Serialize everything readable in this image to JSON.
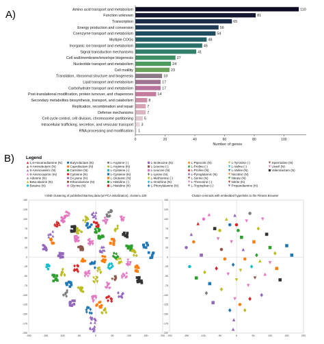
{
  "figure": {
    "panel_a_letter": "A)",
    "panel_b_letter": "B)",
    "legend_title": "Legend",
    "scatter_left_title": "t-SNE clustering of published BarSeq data (w/ PCA initialization), clusters=100",
    "scatter_right_title": "Cluster centroids with embedded hyperlinks to the Fitness Browser"
  },
  "chart_data": [
    {
      "type": "bar",
      "orientation": "horizontal",
      "categories": [
        "Amino acid transport and metabolism",
        "Function unknown",
        "Transcription",
        "Energy production and conversion",
        "Coenzyme transport and metabolism",
        "Multiple COGs",
        "Inorganic ion transport and metabolism",
        "Signal transduction mechanisms",
        "Cell wall/membrane/envelope biogenesis",
        "Nucleotide transport and metabolism",
        "Cell motility",
        "Translation, ribosomal structure and biogenesis",
        "Lipid transport and metabolism",
        "Carbohydrate transport and metabolism",
        "Post-translational modification, protein turnover, and chaperones",
        "Secondary metabolites biosynthesis, transport, and catabolism",
        "Replication, recombination and repair",
        "Defense mechanisms",
        "Cell cycle control, cell division, chromosome partitioning",
        "Intracellular trafficking, secretion, and vesicular transport",
        "RNA processing and modification"
      ],
      "values": [
        110,
        81,
        65,
        56,
        54,
        48,
        45,
        41,
        27,
        24,
        23,
        18,
        17,
        17,
        14,
        8,
        7,
        7,
        5,
        3,
        1
      ],
      "value_labels": [
        "110",
        "81",
        "65",
        "56",
        "54",
        "48",
        "45",
        "41",
        "27",
        "24",
        "23",
        "18",
        "17",
        "17",
        "14",
        "8",
        "7",
        "7",
        "5",
        "3",
        "1"
      ],
      "xlabel": "Number of genes",
      "xlim": [
        0,
        115
      ],
      "xticks": [
        0,
        20,
        40,
        60,
        80,
        100
      ],
      "xtick_labels": [
        "0",
        "20",
        "40",
        "60",
        "80",
        "100"
      ],
      "colors": [
        "#0d0a24",
        "#15162f",
        "#1b2a46",
        "#1e3b55",
        "#1f4c5e",
        "#225f66",
        "#27716a",
        "#2f806a",
        "#3e8e66",
        "#4f9a5f",
        "#6aa257",
        "#8a7a86",
        "#a07592",
        "#b6749c",
        "#c47c9e",
        "#cd8fa7",
        "#d3a3b4",
        "#d9b6c2",
        "#dfc6cf",
        "#e7d7dd",
        "#efe6ea"
      ]
    },
    {
      "type": "scatter",
      "title": "t-SNE clustering of published BarSeq data (w/ PCA initialization), clusters=100",
      "xlim": [
        -200,
        200
      ],
      "ylim": [
        -200,
        150
      ],
      "xticks": [
        "-200",
        "-150",
        "-100",
        "-50",
        "0",
        "50",
        "100",
        "150",
        "200"
      ],
      "yticks": [
        "150",
        "125",
        "100",
        "75",
        "50",
        "25",
        "0",
        "-25",
        "-50",
        "-75",
        "-100",
        "-125",
        "-150",
        "-175",
        "-200"
      ],
      "legend": [
        {
          "label": "1,6-Hexanediamine (N)",
          "color": "#d62728",
          "marker": "triangle"
        },
        {
          "label": "4-Aminobutyric (N)",
          "color": "#8c564b",
          "marker": "triangle"
        },
        {
          "label": "5-Aminovaleric (N)",
          "color": "#9467bd",
          "marker": "triangle"
        },
        {
          "label": "6-Aminocaproic (N)",
          "color": "#e377c2",
          "marker": "triangle"
        },
        {
          "label": "Adenine (N)",
          "color": "#7f7f7f",
          "marker": "triangle"
        },
        {
          "label": "Beta-alanine (N)",
          "color": "#bcbd22",
          "marker": "triangle"
        },
        {
          "label": "Betaine (N)",
          "color": "#17becf",
          "marker": "circle"
        },
        {
          "label": "Butyrolactam (N)",
          "color": "#1f77b4",
          "marker": "circle"
        },
        {
          "label": "Caprolactam (N)",
          "color": "#ff7f0e",
          "marker": "circle"
        },
        {
          "label": "Carnitine (N)",
          "color": "#2ca02c",
          "marker": "circle"
        },
        {
          "label": "Cytosine (N)",
          "color": "#d62728",
          "marker": "circle"
        },
        {
          "label": "D-Lysine (N)",
          "color": "#9467bd",
          "marker": "circle"
        },
        {
          "label": "Ethanolamine (N)",
          "color": "#8c564b",
          "marker": "circle"
        },
        {
          "label": "Glycine (N)",
          "color": "#e377c2",
          "marker": "circle"
        },
        {
          "label": "L-Arginine (-)",
          "color": "#7f7f7f",
          "marker": "circle"
        },
        {
          "label": "L-Arginine (N)",
          "color": "#bcbd22",
          "marker": "circle"
        },
        {
          "label": "L-Cysteine (-)",
          "color": "#17becf",
          "marker": "square"
        },
        {
          "label": "L-Cysteine (N)",
          "color": "#1f77b4",
          "marker": "square"
        },
        {
          "label": "L-Glutamic (N)",
          "color": "#ff7f0e",
          "marker": "square"
        },
        {
          "label": "L-Histidine (-)",
          "color": "#2ca02c",
          "marker": "square"
        },
        {
          "label": "L-Histidine (N)",
          "color": "#d62728",
          "marker": "square"
        },
        {
          "label": "L-Isoleucine (N)",
          "color": "#9467bd",
          "marker": "square"
        },
        {
          "label": "L-Leucine (-)",
          "color": "#8c564b",
          "marker": "square"
        },
        {
          "label": "L-Leucine (N)",
          "color": "#e377c2",
          "marker": "square"
        },
        {
          "label": "L-Lysine (N)",
          "color": "#7f7f7f",
          "marker": "diamond"
        },
        {
          "label": "L-Methionine (-)",
          "color": "#bcbd22",
          "marker": "diamond"
        },
        {
          "label": "L-Ornithine (N)",
          "color": "#17becf",
          "marker": "diamond"
        },
        {
          "label": "L-Phenylalanine (N)",
          "color": "#1f77b4",
          "marker": "diamond"
        },
        {
          "label": "L-Pipecolic (N)",
          "color": "#ff7f0e",
          "marker": "diamond"
        },
        {
          "label": "L-Proline (-)",
          "color": "#2ca02c",
          "marker": "diamond"
        },
        {
          "label": "L-Proline (N)",
          "color": "#d62728",
          "marker": "diamond"
        },
        {
          "label": "L-Pyroglutamic (N)",
          "color": "#9467bd",
          "marker": "diamond"
        },
        {
          "label": "L-Serine (N)",
          "color": "#8c564b",
          "marker": "triangle-down"
        },
        {
          "label": "L-Threonine (-)",
          "color": "#e377c2",
          "marker": "triangle-down"
        },
        {
          "label": "L-Tryptophan (-)",
          "color": "#7f7f7f",
          "marker": "triangle-down"
        },
        {
          "label": "L-Tyrosine (-)",
          "color": "#bcbd22",
          "marker": "triangle-down"
        },
        {
          "label": "L-Valine (-)",
          "color": "#17becf",
          "marker": "triangle-down"
        },
        {
          "label": "L-Valine (N)",
          "color": "#1f77b4",
          "marker": "triangle-down"
        },
        {
          "label": "Nicotinic (N)",
          "color": "#ff7f0e",
          "marker": "triangle-down"
        },
        {
          "label": "Nitrate (N)",
          "color": "#2ca02c",
          "marker": "triangle-down"
        },
        {
          "label": "Nitrite (N)",
          "color": "#d62728",
          "marker": "triangle-down"
        },
        {
          "label": "Propandiamine (N)",
          "color": "#9467bd",
          "marker": "triangle-down"
        },
        {
          "label": "Spermidine (N)",
          "color": "#8c564b",
          "marker": "triangle-down"
        },
        {
          "label": "Uracil (N)",
          "color": "#e377c2",
          "marker": "triangle-down"
        },
        {
          "label": "Valerolactam (N)",
          "color": "#333333",
          "marker": "square"
        }
      ],
      "clusters": [
        [
          -150,
          25,
          11,
          9
        ],
        [
          -135,
          60,
          2,
          6
        ],
        [
          -128,
          40,
          8,
          8
        ],
        [
          -115,
          88,
          0,
          10
        ],
        [
          -98,
          100,
          13,
          8
        ],
        [
          -82,
          112,
          3,
          8
        ],
        [
          -65,
          75,
          44,
          12
        ],
        [
          -55,
          48,
          43,
          18
        ],
        [
          -45,
          20,
          12,
          10
        ],
        [
          -30,
          100,
          5,
          9
        ],
        [
          -20,
          85,
          7,
          8
        ],
        [
          -15,
          40,
          43,
          14
        ],
        [
          -5,
          110,
          2,
          8
        ],
        [
          5,
          70,
          9,
          8
        ],
        [
          15,
          52,
          19,
          8
        ],
        [
          20,
          20,
          2,
          9
        ],
        [
          30,
          95,
          43,
          10
        ],
        [
          40,
          115,
          14,
          8
        ],
        [
          52,
          40,
          18,
          8
        ],
        [
          65,
          75,
          25,
          9
        ],
        [
          78,
          100,
          43,
          8
        ],
        [
          90,
          60,
          44,
          10
        ],
        [
          100,
          25,
          19,
          9
        ],
        [
          -140,
          -25,
          6,
          6
        ],
        [
          -120,
          -55,
          19,
          9
        ],
        [
          -95,
          -40,
          25,
          8
        ],
        [
          -80,
          -70,
          17,
          8
        ],
        [
          -60,
          -30,
          30,
          9
        ],
        [
          -45,
          -85,
          25,
          10
        ],
        [
          -35,
          -5,
          8,
          8
        ],
        [
          -25,
          -45,
          43,
          12
        ],
        [
          -10,
          -20,
          27,
          8
        ],
        [
          0,
          -60,
          35,
          8
        ],
        [
          12,
          -35,
          35,
          8
        ],
        [
          25,
          -5,
          8,
          8
        ],
        [
          35,
          -75,
          43,
          10
        ],
        [
          45,
          -25,
          26,
          9
        ],
        [
          55,
          -55,
          32,
          9
        ],
        [
          70,
          -10,
          5,
          9
        ],
        [
          85,
          -45,
          3,
          8
        ],
        [
          100,
          -15,
          43,
          9
        ],
        [
          115,
          10,
          25,
          8
        ],
        [
          130,
          -60,
          44,
          10
        ],
        [
          150,
          30,
          17,
          6
        ],
        [
          165,
          5,
          17,
          6
        ],
        [
          -5,
          -110,
          43,
          12
        ],
        [
          -20,
          -140,
          27,
          8
        ],
        [
          10,
          -125,
          8,
          8
        ],
        [
          -8,
          -165,
          2,
          10
        ],
        [
          -10,
          -190,
          2,
          8
        ],
        [
          -70,
          -120,
          21,
          8
        ],
        [
          40,
          -110,
          30,
          8
        ],
        [
          75,
          -100,
          31,
          8
        ],
        [
          -105,
          5,
          21,
          8
        ],
        [
          60,
          5,
          29,
          8
        ],
        [
          -50,
          70,
          15,
          7
        ],
        [
          0,
          85,
          10,
          7
        ],
        [
          25,
          -140,
          25,
          6
        ],
        [
          -90,
          -95,
          24,
          7
        ],
        [
          120,
          -30,
          18,
          7
        ]
      ]
    }
  ]
}
